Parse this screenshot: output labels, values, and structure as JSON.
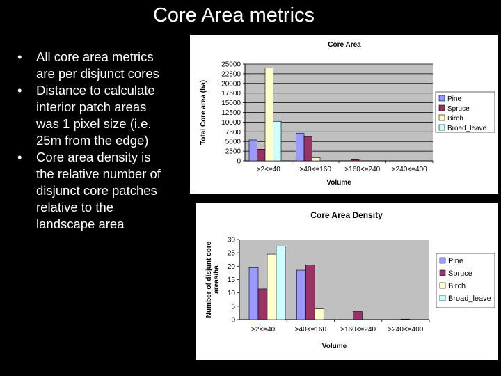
{
  "slide": {
    "title": "Core Area metrics",
    "bullets": [
      "All core area metrics are per disjunct cores",
      "Distance to calculate interior patch areas was 1 pixel size (i.e. 25m from the edge)",
      "Core area density is the relative number of disjunct core patches relative to the landscape area"
    ]
  },
  "colors": {
    "series": [
      "#9999ff",
      "#993366",
      "#ffffcc",
      "#ccffff"
    ],
    "plot_bg": "#c0c0c0",
    "gridline": "#000000"
  },
  "chart_data": [
    {
      "type": "bar",
      "title": "Core Area",
      "xlabel": "Volume",
      "ylabel": "Total Core area (ha)",
      "categories": [
        ">2<=40",
        ">40<=160",
        ">160<=240",
        ">240<=400"
      ],
      "ylim": [
        0,
        25000
      ],
      "yticks": [
        0,
        2500,
        5000,
        7500,
        10000,
        12500,
        15000,
        17500,
        20000,
        22500,
        25000
      ],
      "grid": true,
      "legend": "right",
      "series": [
        {
          "name": "Pine",
          "values": [
            5400,
            7100,
            0,
            0
          ]
        },
        {
          "name": "Spruce",
          "values": [
            3000,
            6200,
            300,
            0
          ]
        },
        {
          "name": "Birch",
          "values": [
            24000,
            800,
            0,
            0
          ]
        },
        {
          "name": "Broad_leave",
          "values": [
            10200,
            0,
            0,
            0
          ]
        }
      ],
      "legend_labels": [
        "Pine",
        "Spruce",
        "Birch",
        "Broad_leave"
      ]
    },
    {
      "type": "bar",
      "title": "Core Area Density",
      "xlabel": "Volume",
      "ylabel": "Number of disjunt core areas/ha",
      "categories": [
        ">2<=40",
        ">40<=160",
        ">160<=240",
        ">240<=400"
      ],
      "ylim": [
        0,
        30
      ],
      "yticks": [
        0,
        5,
        10,
        15,
        20,
        25,
        30
      ],
      "grid": false,
      "legend": "right",
      "series": [
        {
          "name": "Pine",
          "values": [
            19.5,
            18.5,
            0,
            0
          ]
        },
        {
          "name": "Spruce",
          "values": [
            11.5,
            20.5,
            3,
            0.2
          ]
        },
        {
          "name": "Birch",
          "values": [
            24.5,
            4,
            0,
            0
          ]
        },
        {
          "name": "Broad_leave",
          "values": [
            27.5,
            0,
            0,
            0
          ]
        }
      ],
      "legend_labels": [
        "Pine",
        "Spruce",
        "Birch",
        "Broad_leave"
      ]
    }
  ]
}
